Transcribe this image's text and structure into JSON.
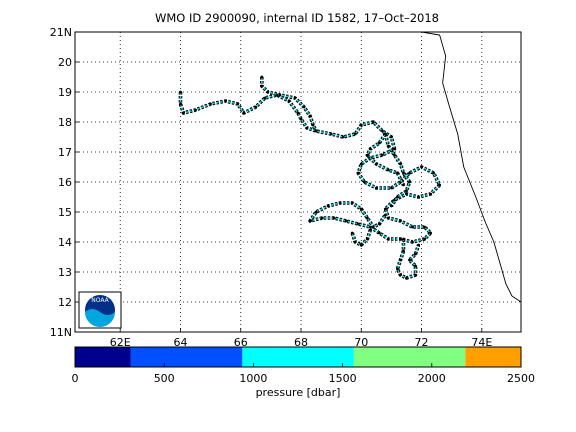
{
  "chart_data": {
    "type": "line",
    "title": "WMO ID 2900090, internal ID 1582, 17–Oct–2018",
    "xlim": [
      60.5,
      75.3
    ],
    "ylim": [
      11,
      21
    ],
    "x_tick_values": [
      62,
      64,
      66,
      68,
      70,
      72,
      74
    ],
    "x_tick_labels": [
      "62E",
      "64",
      "66",
      "68",
      "70",
      "72",
      "74E"
    ],
    "y_tick_values": [
      11,
      12,
      13,
      14,
      15,
      16,
      17,
      18,
      19,
      20,
      21
    ],
    "y_tick_labels": [
      "11N",
      "12",
      "13",
      "14",
      "15",
      "16",
      "17",
      "18",
      "19",
      "20",
      "21N"
    ],
    "grid": true,
    "coastline": [
      [
        72.0,
        21.0
      ],
      [
        72.6,
        20.9
      ],
      [
        72.8,
        20.2
      ],
      [
        72.7,
        19.3
      ],
      [
        72.9,
        18.6
      ],
      [
        73.2,
        17.6
      ],
      [
        73.4,
        16.5
      ],
      [
        73.8,
        15.5
      ],
      [
        74.1,
        14.7
      ],
      [
        74.4,
        14.0
      ],
      [
        74.6,
        13.3
      ],
      [
        74.8,
        12.6
      ],
      [
        75.0,
        12.2
      ],
      [
        75.3,
        12.0
      ]
    ],
    "track_color": "#00e8f0",
    "marker_color": "#000000",
    "track_segments": [
      [
        [
          64.0,
          19.0
        ],
        [
          64.0,
          18.6
        ],
        [
          64.1,
          18.3
        ],
        [
          64.5,
          18.4
        ],
        [
          65.0,
          18.6
        ],
        [
          65.5,
          18.7
        ],
        [
          65.9,
          18.6
        ],
        [
          66.1,
          18.3
        ],
        [
          66.5,
          18.5
        ],
        [
          66.8,
          18.8
        ],
        [
          67.2,
          18.9
        ],
        [
          67.6,
          18.7
        ],
        [
          67.9,
          18.3
        ],
        [
          68.0,
          18.1
        ],
        [
          68.2,
          17.8
        ],
        [
          68.5,
          17.7
        ],
        [
          69.0,
          17.6
        ],
        [
          69.4,
          17.5
        ],
        [
          69.8,
          17.6
        ],
        [
          70.0,
          17.9
        ],
        [
          70.4,
          18.0
        ],
        [
          70.7,
          17.7
        ],
        [
          71.0,
          17.5
        ],
        [
          71.1,
          17.1
        ],
        [
          70.7,
          16.9
        ],
        [
          70.3,
          16.8
        ],
        [
          70.0,
          16.6
        ],
        [
          69.9,
          16.3
        ],
        [
          70.1,
          16.0
        ],
        [
          70.5,
          15.8
        ],
        [
          71.0,
          15.8
        ],
        [
          71.3,
          16.0
        ],
        [
          71.6,
          16.3
        ],
        [
          72.0,
          16.5
        ],
        [
          72.4,
          16.3
        ],
        [
          72.6,
          15.9
        ],
        [
          72.3,
          15.6
        ],
        [
          71.9,
          15.5
        ],
        [
          71.5,
          15.6
        ],
        [
          71.1,
          15.4
        ],
        [
          70.8,
          15.1
        ],
        [
          70.9,
          14.8
        ],
        [
          71.3,
          14.7
        ],
        [
          71.7,
          14.5
        ],
        [
          72.1,
          14.5
        ],
        [
          72.3,
          14.3
        ],
        [
          72.1,
          14.1
        ],
        [
          71.7,
          14.0
        ],
        [
          71.3,
          14.1
        ],
        [
          70.9,
          14.1
        ],
        [
          70.6,
          14.3
        ],
        [
          70.3,
          14.5
        ],
        [
          69.9,
          14.6
        ],
        [
          69.5,
          14.7
        ],
        [
          69.1,
          14.8
        ],
        [
          68.7,
          14.8
        ],
        [
          68.3,
          14.7
        ],
        [
          68.5,
          15.0
        ],
        [
          68.9,
          15.2
        ],
        [
          69.3,
          15.3
        ],
        [
          69.7,
          15.3
        ],
        [
          70.0,
          15.1
        ],
        [
          70.2,
          14.8
        ],
        [
          70.4,
          14.5
        ],
        [
          70.6,
          14.6
        ],
        [
          70.8,
          14.9
        ]
      ],
      [
        [
          66.7,
          19.5
        ],
        [
          66.7,
          19.2
        ],
        [
          66.9,
          19.0
        ],
        [
          67.3,
          18.9
        ],
        [
          67.8,
          18.8
        ],
        [
          68.1,
          18.5
        ],
        [
          68.3,
          18.2
        ],
        [
          68.4,
          17.9
        ],
        [
          68.5,
          17.7
        ]
      ],
      [
        [
          70.8,
          17.6
        ],
        [
          70.9,
          17.2
        ],
        [
          71.1,
          16.9
        ],
        [
          71.3,
          16.6
        ],
        [
          71.4,
          16.3
        ],
        [
          71.6,
          16.0
        ],
        [
          71.5,
          15.7
        ],
        [
          71.2,
          15.5
        ],
        [
          71.0,
          15.2
        ]
      ],
      [
        [
          69.7,
          14.3
        ],
        [
          69.8,
          14.0
        ],
        [
          70.0,
          13.9
        ],
        [
          70.2,
          14.1
        ],
        [
          70.3,
          14.4
        ]
      ],
      [
        [
          71.4,
          14.1
        ],
        [
          71.4,
          13.7
        ],
        [
          71.3,
          13.4
        ],
        [
          71.2,
          13.1
        ],
        [
          71.3,
          12.9
        ],
        [
          71.5,
          12.8
        ],
        [
          71.8,
          12.9
        ],
        [
          71.8,
          13.2
        ],
        [
          71.6,
          13.4
        ],
        [
          71.8,
          13.6
        ],
        [
          71.9,
          13.9
        ]
      ],
      [
        [
          70.8,
          17.6
        ],
        [
          70.6,
          17.3
        ],
        [
          70.3,
          17.1
        ],
        [
          70.2,
          16.9
        ],
        [
          70.5,
          16.6
        ],
        [
          70.9,
          16.4
        ],
        [
          71.2,
          16.3
        ],
        [
          71.4,
          15.9
        ]
      ]
    ],
    "colorbar": {
      "label": "pressure [dbar]",
      "range": [
        0,
        2500
      ],
      "tick_values": [
        0,
        500,
        1000,
        1500,
        2000,
        2500
      ],
      "tick_labels": [
        "0",
        "500",
        "1000",
        "1500",
        "2000",
        "2500"
      ],
      "bins": [
        {
          "from": 0,
          "to": 313,
          "color": "#00008f"
        },
        {
          "from": 313,
          "to": 938,
          "color": "#0050ff"
        },
        {
          "from": 938,
          "to": 1563,
          "color": "#00ffff"
        },
        {
          "from": 1563,
          "to": 2188,
          "color": "#80ff80"
        },
        {
          "from": 2188,
          "to": 2500,
          "color": "#ffa000"
        }
      ]
    },
    "logo": {
      "text": "NOAA",
      "color_dark": "#003087",
      "color_light": "#00a6e0"
    }
  }
}
